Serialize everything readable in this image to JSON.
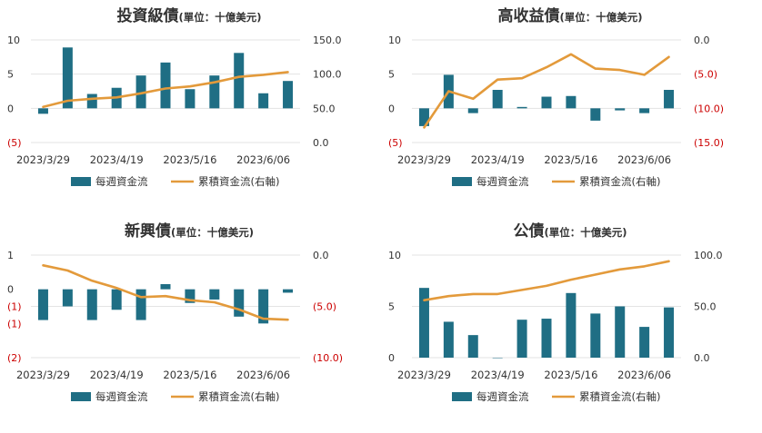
{
  "legend": {
    "bar_label": "每週資金流",
    "line_label": "累積資金流(右軸)"
  },
  "colors": {
    "bar": "#1f6e84",
    "line": "#e39a3b",
    "grid": "#e3e3e3",
    "text": "#333333",
    "negative": "#cc0000"
  },
  "chart_data": [
    {
      "type": "bar",
      "title": "投資級債",
      "subtitle": "(單位：十億美元)",
      "x_ticks": [
        "2023/3/29",
        "2023/4/19",
        "2023/5/16",
        "2023/6/06"
      ],
      "x_tick_index": [
        0,
        3,
        6,
        9
      ],
      "left_axis": {
        "ticks": [
          10,
          5,
          0,
          -5
        ],
        "tick_labels": [
          "10",
          "5",
          "0",
          "(5)"
        ],
        "range": [
          -5,
          10
        ]
      },
      "right_axis": {
        "ticks": [
          150,
          100,
          50,
          0
        ],
        "tick_labels": [
          "150.0",
          "100.0",
          "50.0",
          "0.0"
        ],
        "range": [
          0,
          150
        ]
      },
      "series": [
        {
          "name": "每週資金流",
          "kind": "bar",
          "axis": "left",
          "values": [
            -0.8,
            8.9,
            2.1,
            3.0,
            4.8,
            6.7,
            2.8,
            4.8,
            8.1,
            2.2,
            4.0
          ]
        },
        {
          "name": "累積資金流(右軸)",
          "kind": "line",
          "axis": "right",
          "values": [
            52,
            61,
            64,
            66,
            72,
            79,
            82,
            88,
            96,
            99,
            103
          ]
        }
      ]
    },
    {
      "type": "bar",
      "title": "高收益債",
      "subtitle": "(單位：十億美元)",
      "x_ticks": [
        "2023/3/29",
        "2023/4/19",
        "2023/5/16",
        "2023/6/06"
      ],
      "x_tick_index": [
        0,
        3,
        6,
        9
      ],
      "left_axis": {
        "ticks": [
          10,
          5,
          0,
          -5
        ],
        "tick_labels": [
          "10",
          "5",
          "0",
          "(5)"
        ],
        "range": [
          -5,
          10
        ]
      },
      "right_axis": {
        "ticks": [
          0,
          -5,
          -10,
          -15
        ],
        "tick_labels": [
          "0.0",
          "(5.0)",
          "(10.0)",
          "(15.0)"
        ],
        "range": [
          -15,
          0
        ]
      },
      "series": [
        {
          "name": "每週資金流",
          "kind": "bar",
          "axis": "left",
          "values": [
            -2.6,
            4.9,
            -0.7,
            2.7,
            0.2,
            1.7,
            1.8,
            -1.8,
            -0.3,
            -0.7,
            2.7
          ]
        },
        {
          "name": "累積資金流(右軸)",
          "kind": "line",
          "axis": "right",
          "values": [
            -12.8,
            -7.5,
            -8.6,
            -5.8,
            -5.6,
            -4.0,
            -2.1,
            -4.2,
            -4.4,
            -5.1,
            -2.5
          ]
        }
      ]
    },
    {
      "type": "bar",
      "title": "新興債",
      "subtitle": "(單位：十億美元)",
      "x_ticks": [
        "2023/3/29",
        "2023/4/19",
        "2023/5/16",
        "2023/6/06"
      ],
      "x_tick_index": [
        0,
        3,
        6,
        9
      ],
      "left_axis": {
        "ticks": [
          1,
          0,
          -0.5,
          -1,
          -2
        ],
        "tick_labels": [
          "1",
          "0",
          "(1)",
          "(1)",
          "(2)"
        ],
        "range": [
          -2,
          1
        ]
      },
      "right_axis": {
        "ticks": [
          0,
          -5,
          -10
        ],
        "tick_labels": [
          "0.0",
          "(5.0)",
          "(10.0)"
        ],
        "range": [
          -10,
          0
        ]
      },
      "series": [
        {
          "name": "每週資金流",
          "kind": "bar",
          "axis": "left",
          "values": [
            -0.9,
            -0.5,
            -0.9,
            -0.6,
            -0.9,
            0.15,
            -0.4,
            -0.3,
            -0.8,
            -1.0,
            -0.1
          ]
        },
        {
          "name": "累積資金流(右軸)",
          "kind": "line",
          "axis": "right",
          "values": [
            -1.0,
            -1.5,
            -2.5,
            -3.2,
            -4.1,
            -4.0,
            -4.4,
            -4.6,
            -5.3,
            -6.2,
            -6.3
          ]
        }
      ]
    },
    {
      "type": "bar",
      "title": "公債",
      "subtitle": "(單位：十億美元)",
      "x_ticks": [
        "2023/3/29",
        "2023/4/19",
        "2023/5/16",
        "2023/6/06"
      ],
      "x_tick_index": [
        0,
        3,
        6,
        9
      ],
      "left_axis": {
        "ticks": [
          10,
          5,
          0
        ],
        "tick_labels": [
          "10",
          "5",
          "0"
        ],
        "range": [
          0,
          10
        ]
      },
      "right_axis": {
        "ticks": [
          100,
          50,
          0
        ],
        "tick_labels": [
          "100.0",
          "50.0",
          "0.0"
        ],
        "range": [
          0,
          100
        ]
      },
      "series": [
        {
          "name": "每週資金流",
          "kind": "bar",
          "axis": "left",
          "values": [
            6.8,
            3.5,
            2.2,
            0,
            3.7,
            3.8,
            6.3,
            4.3,
            5.0,
            3.0,
            4.9
          ]
        },
        {
          "name": "累積資金流(右軸)",
          "kind": "line",
          "axis": "right",
          "values": [
            56,
            60,
            62,
            62,
            66,
            70,
            76,
            81,
            86,
            89,
            94
          ]
        }
      ]
    }
  ]
}
